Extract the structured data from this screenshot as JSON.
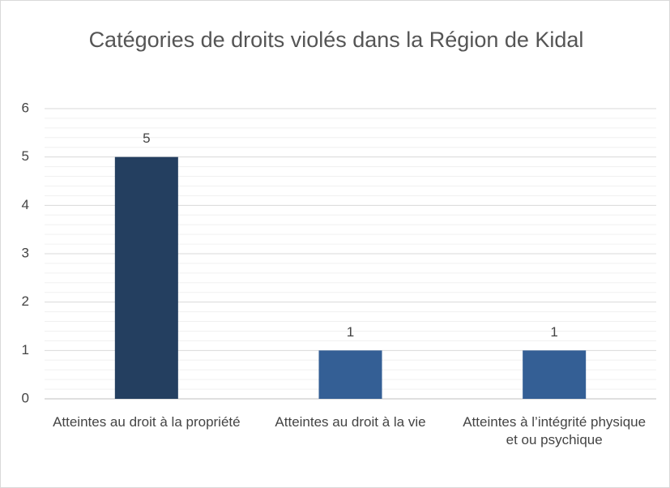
{
  "chart_data": {
    "type": "bar",
    "title": "Catégories de droits violés dans la Région de Kidal",
    "categories": [
      "Atteintes au droit à la propriété",
      "Atteintes au droit à la vie",
      "Atteintes à l’intégrité physique et ou psychique"
    ],
    "values": [
      5,
      1,
      1
    ],
    "colors": [
      "#243f60",
      "#345f95",
      "#345f95"
    ],
    "ylim": [
      0,
      6
    ],
    "yticks": [
      0,
      1,
      2,
      3,
      4,
      5,
      6
    ],
    "grid": true,
    "minor_grid_divisions": 5,
    "data_labels": true
  }
}
